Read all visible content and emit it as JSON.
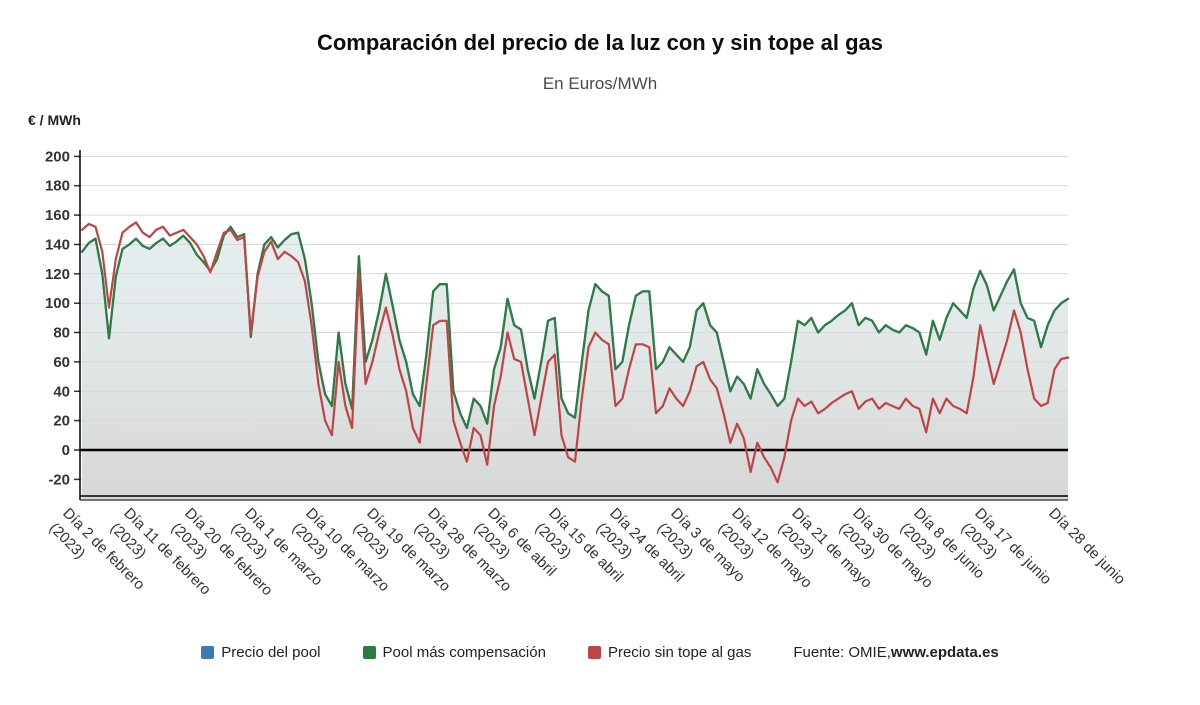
{
  "chart_data": {
    "type": "line",
    "title": "Comparación del precio de la luz con y sin tope al gas",
    "subtitle": "En Euros/MWh",
    "ylabel": "€ / MWh",
    "unit": "€/MWh",
    "grid": true,
    "legend_position": "bottom",
    "ylim": [
      -34,
      205
    ],
    "y_ticks": [
      200,
      180,
      160,
      140,
      120,
      100,
      80,
      60,
      40,
      20,
      0,
      -20
    ],
    "x_axis": {
      "frequency": "daily",
      "n_points": 147,
      "tick_labels": [
        {
          "label": "Día 2 de febrero",
          "year": "(2023)",
          "day_index": 0
        },
        {
          "label": "Día 11 de febrero",
          "year": "(2023)",
          "day_index": 9
        },
        {
          "label": "Día 20 de febrero",
          "year": "(2023)",
          "day_index": 18
        },
        {
          "label": "Día 1 de marzo",
          "year": "(2023)",
          "day_index": 27
        },
        {
          "label": "Día 10 de marzo",
          "year": "(2023)",
          "day_index": 36
        },
        {
          "label": "Día 19 de marzo",
          "year": "(2023)",
          "day_index": 45
        },
        {
          "label": "Día 28 de marzo",
          "year": "(2023)",
          "day_index": 54
        },
        {
          "label": "Día 6 de abril",
          "year": "(2023)",
          "day_index": 63
        },
        {
          "label": "Día 15 de abril",
          "year": "(2023)",
          "day_index": 72
        },
        {
          "label": "Día 24 de abril",
          "year": "(2023)",
          "day_index": 81
        },
        {
          "label": "Día 3 de mayo",
          "year": "(2023)",
          "day_index": 90
        },
        {
          "label": "Día 12 de mayo",
          "year": "(2023)",
          "day_index": 99
        },
        {
          "label": "Día 21 de mayo",
          "year": "(2023)",
          "day_index": 108
        },
        {
          "label": "Día 30 de mayo",
          "year": "(2023)",
          "day_index": 117
        },
        {
          "label": "Día 8 de junio",
          "year": "(2023)",
          "day_index": 126
        },
        {
          "label": "Día 17 de junio",
          "year": "(2023)",
          "day_index": 135
        },
        {
          "label": "Día 28 de junio",
          "year": "",
          "day_index": 146
        }
      ]
    },
    "series": [
      {
        "name": "Precio del pool",
        "color": "#3d7ab5",
        "note": "visualmente coincide con la serie Pool más compensación (queda oculta debajo)",
        "values": [
          135,
          141,
          144,
          120,
          76,
          118,
          137,
          140,
          144,
          139,
          137,
          141,
          144,
          139,
          142,
          146,
          141,
          133,
          128,
          122,
          130,
          146,
          152,
          145,
          147,
          77,
          120,
          140,
          145,
          138,
          143,
          147,
          148,
          130,
          100,
          60,
          38,
          30,
          80,
          45,
          28,
          132,
          60,
          75,
          95,
          120,
          98,
          75,
          60,
          38,
          30,
          65,
          108,
          113,
          113,
          40,
          25,
          15,
          35,
          30,
          18,
          55,
          70,
          103,
          85,
          82,
          55,
          35,
          60,
          88,
          90,
          35,
          25,
          22,
          60,
          95,
          113,
          108,
          105,
          55,
          60,
          85,
          105,
          108,
          108,
          55,
          60,
          70,
          65,
          60,
          70,
          95,
          100,
          85,
          80,
          60,
          40,
          50,
          45,
          35,
          55,
          45,
          38,
          30,
          35,
          60,
          88,
          85,
          90,
          80,
          85,
          88,
          92,
          95,
          100,
          85,
          90,
          88,
          80,
          85,
          82,
          80,
          85,
          83,
          80,
          65,
          88,
          75,
          90,
          100,
          95,
          90,
          110,
          122,
          112,
          95,
          105,
          115,
          123,
          100,
          90,
          88,
          70,
          85,
          95,
          100,
          103
        ]
      },
      {
        "name": "Pool más compensación",
        "color": "#2e7d40",
        "values": [
          135,
          141,
          144,
          120,
          76,
          118,
          137,
          140,
          144,
          139,
          137,
          141,
          144,
          139,
          142,
          146,
          141,
          133,
          128,
          122,
          130,
          146,
          152,
          145,
          147,
          77,
          120,
          140,
          145,
          138,
          143,
          147,
          148,
          130,
          100,
          60,
          38,
          30,
          80,
          45,
          28,
          132,
          60,
          75,
          95,
          120,
          98,
          75,
          60,
          38,
          30,
          65,
          108,
          113,
          113,
          40,
          25,
          15,
          35,
          30,
          18,
          55,
          70,
          103,
          85,
          82,
          55,
          35,
          60,
          88,
          90,
          35,
          25,
          22,
          60,
          95,
          113,
          108,
          105,
          55,
          60,
          85,
          105,
          108,
          108,
          55,
          60,
          70,
          65,
          60,
          70,
          95,
          100,
          85,
          80,
          60,
          40,
          50,
          45,
          35,
          55,
          45,
          38,
          30,
          35,
          60,
          88,
          85,
          90,
          80,
          85,
          88,
          92,
          95,
          100,
          85,
          90,
          88,
          80,
          85,
          82,
          80,
          85,
          83,
          80,
          65,
          88,
          75,
          90,
          100,
          95,
          90,
          110,
          122,
          112,
          95,
          105,
          115,
          123,
          100,
          90,
          88,
          70,
          85,
          95,
          100,
          103
        ]
      },
      {
        "name": "Precio sin tope al gas",
        "color": "#bf4545",
        "values": [
          150,
          154,
          152,
          135,
          97,
          130,
          148,
          152,
          155,
          148,
          145,
          150,
          152,
          146,
          148,
          150,
          145,
          140,
          132,
          121,
          135,
          148,
          150,
          143,
          145,
          80,
          118,
          135,
          142,
          130,
          135,
          132,
          128,
          115,
          85,
          45,
          20,
          10,
          60,
          30,
          15,
          120,
          45,
          60,
          80,
          97,
          78,
          55,
          40,
          15,
          5,
          45,
          85,
          88,
          88,
          20,
          5,
          -8,
          15,
          10,
          -10,
          30,
          50,
          80,
          62,
          60,
          35,
          10,
          35,
          60,
          65,
          10,
          -5,
          -8,
          35,
          70,
          80,
          75,
          72,
          30,
          35,
          55,
          72,
          72,
          70,
          25,
          30,
          42,
          35,
          30,
          40,
          57,
          60,
          48,
          42,
          25,
          5,
          18,
          8,
          -15,
          5,
          -5,
          -12,
          -22,
          -5,
          20,
          35,
          30,
          33,
          25,
          28,
          32,
          35,
          38,
          40,
          28,
          33,
          35,
          28,
          32,
          30,
          28,
          35,
          30,
          28,
          12,
          35,
          25,
          35,
          30,
          28,
          25,
          50,
          85,
          65,
          45,
          60,
          75,
          95,
          80,
          55,
          35,
          30,
          32,
          55,
          62,
          63
        ]
      }
    ],
    "source": {
      "prefix": "Fuente: OMIE, ",
      "site": "www.epdata.es"
    }
  }
}
